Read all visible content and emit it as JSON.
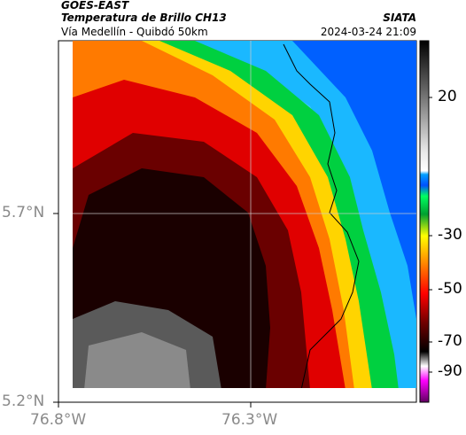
{
  "header": {
    "satellite": "GOES-EAST",
    "product": "Temperatura de Brillo CH13",
    "org": "SIATA",
    "route": "Vía Medellín - Quibdó 50km",
    "datetime": "2024-03-24 21:09"
  },
  "map": {
    "lat_ticks": [
      "5.7°N",
      "5.2°N"
    ],
    "lon_ticks": [
      "76.8°W",
      "76.3°W"
    ]
  },
  "colorbar": {
    "labels": [
      "20",
      "-30",
      "-50",
      "-70",
      "-90"
    ],
    "scale_min": -95,
    "scale_max": 35
  }
}
